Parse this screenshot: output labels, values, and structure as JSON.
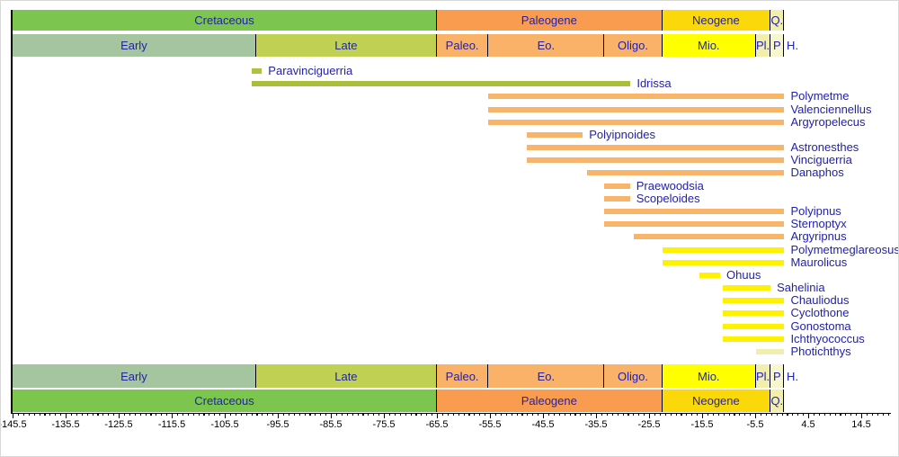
{
  "colors": {
    "cretaceous": "#7cc54e",
    "early_cretaceous": "#a5c4a0",
    "late_cretaceous": "#bfd053",
    "paleogene": "#f99c50",
    "paleogene_epoch": "#fab269",
    "neogene": "#fbd80a",
    "miocene": "#ffff00",
    "pale_quaternary": "#f2efad",
    "pale_pleistocene": "#f8f6cf",
    "bar_olive": "#b2c140",
    "bar_orange": "#f8b46a",
    "bar_yellow": "#fff200",
    "bar_pale": "#efefb0",
    "label_navy": "#2222aa",
    "axis_black": "#000000"
  },
  "chart_data": {
    "type": "bar",
    "orientation": "horizontal-range",
    "title": "",
    "xlabel": "",
    "ylabel": "",
    "axis": {
      "min": -145.5,
      "max": 20.1,
      "major_tick_step": 10,
      "minor_tick_step": 1,
      "major_tick_labels": [
        "-145.5",
        "-135.5",
        "-125.5",
        "-115.5",
        "-105.5",
        "-95.5",
        "-85.5",
        "-75.5",
        "-65.5",
        "-55.5",
        "-45.5",
        "-35.5",
        "-25.5",
        "-15.5",
        "-5.5",
        "4.5",
        "14.5"
      ],
      "grid": false
    },
    "stratigraphy": {
      "holocene_label": "H.",
      "periods": [
        {
          "label": "Cretaceous",
          "from": -145.5,
          "to": -65.5,
          "color": "#7cc54e"
        },
        {
          "label": "Paleogene",
          "from": -65.5,
          "to": -23.03,
          "color": "#f99c50"
        },
        {
          "label": "Neogene",
          "from": -23.03,
          "to": -2.588,
          "color": "#fbd80a"
        },
        {
          "label": "Q.",
          "from": -2.588,
          "to": 0,
          "color": "#f2efad"
        }
      ],
      "epochs": [
        {
          "label": "Early",
          "from": -145.5,
          "to": -99.6,
          "color": "#a5c4a0"
        },
        {
          "label": "Late",
          "from": -99.6,
          "to": -65.5,
          "color": "#bfd053"
        },
        {
          "label": "Paleo.",
          "from": -65.5,
          "to": -55.8,
          "color": "#fab269"
        },
        {
          "label": "Eo.",
          "from": -55.8,
          "to": -33.9,
          "color": "#fab269"
        },
        {
          "label": "Oligo.",
          "from": -33.9,
          "to": -23.03,
          "color": "#fab269"
        },
        {
          "label": "Mio.",
          "from": -23.03,
          "to": -5.33,
          "color": "#ffff00"
        },
        {
          "label": "Pl.",
          "from": -5.33,
          "to": -2.588,
          "color": "#f2efad"
        },
        {
          "label": "P",
          "from": -2.588,
          "to": 0,
          "color": "#f8f6cf"
        }
      ]
    },
    "taxa": [
      {
        "name": "Paravinciguerria",
        "from": -100.5,
        "to": -98.5,
        "color": "#b2c140"
      },
      {
        "name": "Idrissa",
        "from": -100.5,
        "to": -29,
        "color": "#aabe3c"
      },
      {
        "name": "Polymetme",
        "from": -55.8,
        "to": 0,
        "color": "#f8b46a"
      },
      {
        "name": "Valenciennellus",
        "from": -55.8,
        "to": 0,
        "color": "#f8b46a"
      },
      {
        "name": "Argyropelecus",
        "from": -55.8,
        "to": 0,
        "color": "#f8b46a"
      },
      {
        "name": "Polyipnoides",
        "from": -48.6,
        "to": -38,
        "color": "#f8b46a"
      },
      {
        "name": "Astronesthes",
        "from": -48.6,
        "to": 0,
        "color": "#f8b46a"
      },
      {
        "name": "Vinciguerria",
        "from": -48.6,
        "to": 0,
        "color": "#f8b46a"
      },
      {
        "name": "Danaphos",
        "from": -37.2,
        "to": 0,
        "color": "#f8b46a"
      },
      {
        "name": "Praewoodsia",
        "from": -33.9,
        "to": -29.1,
        "color": "#f8b46a"
      },
      {
        "name": "Scopeloides",
        "from": -33.9,
        "to": -29.1,
        "color": "#f8b46a"
      },
      {
        "name": "Polyipnus",
        "from": -33.9,
        "to": 0,
        "color": "#f8b46a"
      },
      {
        "name": "Sternoptyx",
        "from": -33.9,
        "to": 0,
        "color": "#f8b46a"
      },
      {
        "name": "Argyripnus",
        "from": -28.4,
        "to": 0,
        "color": "#f8b46a"
      },
      {
        "name": "Polymetmeglareosus",
        "from": -23,
        "to": 0,
        "color": "#fff200"
      },
      {
        "name": "Maurolicus",
        "from": -23,
        "to": 0,
        "color": "#fff200"
      },
      {
        "name": "Ohuus",
        "from": -15.97,
        "to": -12.1,
        "color": "#fff200"
      },
      {
        "name": "Sahelinia",
        "from": -11.6,
        "to": -2.6,
        "color": "#fff200"
      },
      {
        "name": "Chauliodus",
        "from": -11.6,
        "to": 0,
        "color": "#fff200"
      },
      {
        "name": "Cyclothone",
        "from": -11.6,
        "to": 0,
        "color": "#fff200"
      },
      {
        "name": "Gonostoma",
        "from": -11.6,
        "to": 0,
        "color": "#fff200"
      },
      {
        "name": "Ichthyococcus",
        "from": -11.6,
        "to": 0,
        "color": "#fff200"
      },
      {
        "name": "Photichthys",
        "from": -5.33,
        "to": 0,
        "color": "#efefb0"
      }
    ]
  }
}
